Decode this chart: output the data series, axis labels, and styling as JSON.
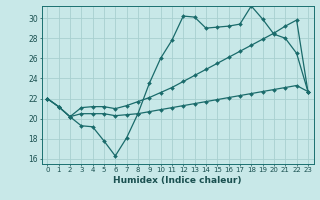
{
  "xlabel": "Humidex (Indice chaleur)",
  "bg_color": "#c8e8e8",
  "line_color": "#1a6b6b",
  "grid_color": "#a8d0d0",
  "xlim": [
    -0.5,
    23.5
  ],
  "ylim": [
    15.5,
    31.2
  ],
  "xticks": [
    0,
    1,
    2,
    3,
    4,
    5,
    6,
    7,
    8,
    9,
    10,
    11,
    12,
    13,
    14,
    15,
    16,
    17,
    18,
    19,
    20,
    21,
    22,
    23
  ],
  "yticks": [
    16,
    18,
    20,
    22,
    24,
    26,
    28,
    30
  ],
  "line1_jagged": {
    "x": [
      0,
      1,
      2,
      3,
      4,
      5,
      6,
      7,
      8,
      9,
      10,
      11,
      12,
      13,
      14,
      15,
      16,
      17,
      18,
      19,
      20,
      21,
      22,
      23
    ],
    "y": [
      22,
      21.2,
      20.2,
      19.3,
      19.2,
      17.8,
      16.3,
      18.1,
      20.5,
      23.5,
      26.0,
      27.8,
      30.2,
      30.1,
      29.0,
      29.1,
      29.2,
      29.4,
      31.2,
      29.9,
      28.4,
      28.0,
      26.5,
      22.7
    ]
  },
  "line2_flat": {
    "x": [
      0,
      1,
      2,
      3,
      4,
      5,
      6,
      7,
      8,
      9,
      10,
      11,
      12,
      13,
      14,
      15,
      16,
      17,
      18,
      19,
      20,
      21,
      22,
      23
    ],
    "y": [
      22,
      21.2,
      20.2,
      20.5,
      20.5,
      20.5,
      20.3,
      20.4,
      20.5,
      20.7,
      20.9,
      21.1,
      21.3,
      21.5,
      21.7,
      21.9,
      22.1,
      22.3,
      22.5,
      22.7,
      22.9,
      23.1,
      23.3,
      22.7
    ]
  },
  "line3_middle": {
    "x": [
      0,
      1,
      2,
      3,
      4,
      5,
      6,
      7,
      8,
      9,
      10,
      11,
      12,
      13,
      14,
      15,
      16,
      17,
      18,
      19,
      20,
      21,
      22,
      23
    ],
    "y": [
      22,
      21.2,
      20.2,
      21.1,
      21.2,
      21.2,
      21.0,
      21.3,
      21.7,
      22.1,
      22.6,
      23.1,
      23.7,
      24.3,
      24.9,
      25.5,
      26.1,
      26.7,
      27.3,
      27.9,
      28.5,
      29.2,
      29.8,
      22.7
    ]
  }
}
